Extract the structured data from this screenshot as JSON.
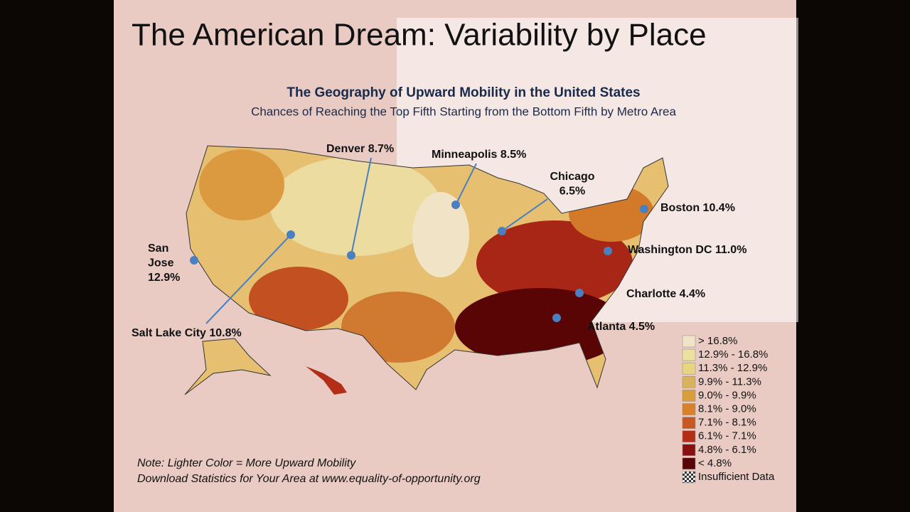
{
  "slide": {
    "title": "The American Dream: Variability by Place"
  },
  "map": {
    "title": "The Geography of Upward Mobility in the United States",
    "subtitle": "Chances of Reaching the Top Fifth Starting from the Bottom Fifth by Metro Area",
    "cities": [
      {
        "lines": [
          "Denver 8.7%"
        ]
      },
      {
        "lines": [
          "Minneapolis 8.5%"
        ]
      },
      {
        "lines": [
          "Chicago",
          "6.5%"
        ]
      },
      {
        "lines": [
          "Boston 10.4%"
        ]
      },
      {
        "lines": [
          "San",
          "Jose",
          "12.9%"
        ]
      },
      {
        "lines": [
          "Washington DC 11.0%"
        ]
      },
      {
        "lines": [
          "Charlotte 4.4%"
        ]
      },
      {
        "lines": [
          "Atlanta 4.5%"
        ]
      },
      {
        "lines": [
          "Salt Lake City 10.8%"
        ]
      }
    ],
    "legend": [
      {
        "label": "> 16.8%",
        "color": "#f0e3c6"
      },
      {
        "label": "12.9% - 16.8%",
        "color": "#ede19f"
      },
      {
        "label": "11.3% - 12.9%",
        "color": "#e9d47f"
      },
      {
        "label": "9.9% - 11.3%",
        "color": "#d9b25c"
      },
      {
        "label": "9.0% - 9.9%",
        "color": "#d99d3c"
      },
      {
        "label": "8.1% - 9.0%",
        "color": "#d7822a"
      },
      {
        "label": "7.1% - 8.1%",
        "color": "#c95820"
      },
      {
        "label": "6.1% - 7.1%",
        "color": "#b22e17"
      },
      {
        "label": "4.8% - 6.1%",
        "color": "#8a1010"
      },
      {
        "label": "< 4.8%",
        "color": "#5a0505"
      },
      {
        "label": "Insufficient Data",
        "color": "checker"
      }
    ],
    "notes": [
      "Note: Lighter Color = More Upward Mobility",
      "Download Statistics for Your Area at www.equality-of-opportunity.org"
    ]
  }
}
